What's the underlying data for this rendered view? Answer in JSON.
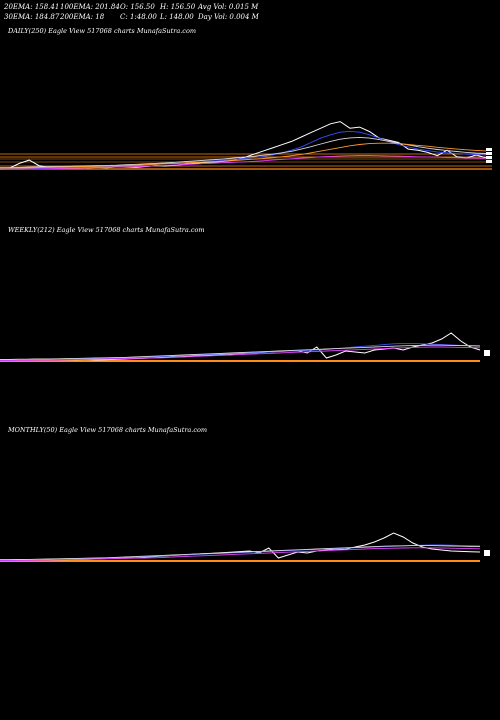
{
  "header": {
    "row1": [
      "20EMA: 158.41",
      "100EMA: 201.84",
      "O: 156.50",
      "H: 156.50",
      "Avg Vol: 0.015 M"
    ],
    "row2": [
      "30EMA: 184.87",
      "200EMA: 18",
      "C: 1:48.00",
      "L: 148.00",
      "Day Vol: 0.004  M"
    ]
  },
  "chart_data": [
    {
      "type": "line",
      "title": "DAILY(250) Eagle   View  517068 charts MunafaSutra.com",
      "series": [
        {
          "color": "#ffffff",
          "values": [
            0.1,
            0.09,
            0.3,
            0.45,
            0.2,
            0.12,
            0.1,
            0.14,
            0.18,
            0.1,
            0.12,
            0.1,
            0.15,
            0.13,
            0.12,
            0.16,
            0.2,
            0.18,
            0.22,
            0.26,
            0.3,
            0.34,
            0.36,
            0.4,
            0.45,
            0.55,
            0.7,
            0.85,
            1.0,
            1.15,
            1.3,
            1.5,
            1.7,
            1.9,
            2.1,
            2.2,
            1.9,
            1.95,
            1.75,
            1.45,
            1.35,
            1.25,
            0.95,
            0.9,
            0.8,
            0.65,
            0.9,
            0.6,
            0.55,
            0.68,
            0.55
          ]
        },
        {
          "color": "#3b4dff",
          "values": [
            0.05,
            0.06,
            0.07,
            0.08,
            0.09,
            0.1,
            0.11,
            0.12,
            0.13,
            0.14,
            0.15,
            0.16,
            0.18,
            0.2,
            0.22,
            0.24,
            0.26,
            0.28,
            0.3,
            0.32,
            0.35,
            0.38,
            0.41,
            0.44,
            0.48,
            0.52,
            0.56,
            0.61,
            0.68,
            0.78,
            0.9,
            1.05,
            1.25,
            1.45,
            1.6,
            1.72,
            1.76,
            1.72,
            1.6,
            1.45,
            1.3,
            1.15,
            1.05,
            0.95,
            0.88,
            0.82,
            0.78,
            0.75,
            0.72,
            0.7,
            0.68
          ]
        },
        {
          "color": "#d8d8d8",
          "values": [
            0.1,
            0.11,
            0.12,
            0.13,
            0.14,
            0.15,
            0.16,
            0.17,
            0.18,
            0.19,
            0.2,
            0.21,
            0.22,
            0.24,
            0.26,
            0.28,
            0.3,
            0.32,
            0.35,
            0.38,
            0.41,
            0.44,
            0.47,
            0.5,
            0.54,
            0.58,
            0.62,
            0.67,
            0.72,
            0.78,
            0.85,
            0.95,
            1.06,
            1.18,
            1.3,
            1.4,
            1.46,
            1.48,
            1.45,
            1.38,
            1.3,
            1.22,
            1.14,
            1.06,
            0.99,
            0.93,
            0.88,
            0.84,
            0.8,
            0.77,
            0.75
          ]
        },
        {
          "color": "#ff9a2e",
          "values": [
            0.08,
            0.08,
            0.09,
            0.1,
            0.11,
            0.12,
            0.13,
            0.14,
            0.15,
            0.16,
            0.17,
            0.18,
            0.19,
            0.2,
            0.22,
            0.24,
            0.26,
            0.28,
            0.3,
            0.32,
            0.34,
            0.36,
            0.38,
            0.4,
            0.43,
            0.46,
            0.49,
            0.52,
            0.56,
            0.6,
            0.65,
            0.71,
            0.78,
            0.86,
            0.94,
            1.02,
            1.1,
            1.16,
            1.2,
            1.22,
            1.22,
            1.2,
            1.16,
            1.12,
            1.08,
            1.03,
            0.99,
            0.95,
            0.92,
            0.89,
            0.87
          ]
        },
        {
          "color": "#e040fb",
          "values": [
            0.02,
            0.03,
            0.03,
            0.04,
            0.05,
            0.06,
            0.07,
            0.08,
            0.09,
            0.1,
            0.11,
            0.12,
            0.13,
            0.14,
            0.15,
            0.17,
            0.19,
            0.21,
            0.23,
            0.25,
            0.27,
            0.29,
            0.31,
            0.33,
            0.35,
            0.37,
            0.39,
            0.42,
            0.45,
            0.48,
            0.51,
            0.54,
            0.57,
            0.6,
            0.62,
            0.64,
            0.65,
            0.66,
            0.66,
            0.65,
            0.64,
            0.63,
            0.62,
            0.6,
            0.59,
            0.58,
            0.57,
            0.56,
            0.55,
            0.54,
            0.53
          ]
        }
      ]
    },
    {
      "type": "line",
      "title": "WEEKLY(212) Eagle   View  517068 charts MunafaSutra.com",
      "series": [
        {
          "color": "#ffffff",
          "values": [
            0.05,
            0.06,
            0.05,
            0.08,
            0.1,
            0.06,
            0.05,
            0.07,
            0.06,
            0.08,
            0.05,
            0.06,
            0.08,
            0.1,
            0.12,
            0.14,
            0.16,
            0.18,
            0.2,
            0.22,
            0.25,
            0.28,
            0.3,
            0.32,
            0.35,
            0.37,
            0.4,
            0.42,
            0.45,
            0.48,
            0.5,
            0.52,
            0.4,
            0.7,
            0.15,
            0.3,
            0.5,
            0.45,
            0.4,
            0.55,
            0.6,
            0.65,
            0.55,
            0.7,
            0.8,
            0.9,
            1.1,
            1.4,
            1.0,
            0.7,
            0.55
          ]
        },
        {
          "color": "#3b4dff",
          "values": [
            0.04,
            0.04,
            0.05,
            0.05,
            0.06,
            0.06,
            0.07,
            0.08,
            0.09,
            0.1,
            0.11,
            0.12,
            0.13,
            0.15,
            0.17,
            0.19,
            0.21,
            0.23,
            0.25,
            0.27,
            0.29,
            0.31,
            0.33,
            0.35,
            0.37,
            0.39,
            0.41,
            0.43,
            0.45,
            0.47,
            0.49,
            0.51,
            0.53,
            0.55,
            0.58,
            0.62,
            0.66,
            0.7,
            0.74,
            0.78,
            0.82,
            0.86,
            0.88,
            0.88,
            0.86,
            0.84,
            0.82,
            0.8,
            0.78,
            0.77,
            0.76
          ]
        },
        {
          "color": "#d8d8d8",
          "values": [
            0.08,
            0.08,
            0.09,
            0.09,
            0.1,
            0.1,
            0.11,
            0.12,
            0.13,
            0.14,
            0.15,
            0.16,
            0.17,
            0.18,
            0.2,
            0.22,
            0.24,
            0.26,
            0.28,
            0.3,
            0.32,
            0.34,
            0.36,
            0.38,
            0.4,
            0.42,
            0.44,
            0.46,
            0.48,
            0.5,
            0.52,
            0.54,
            0.56,
            0.58,
            0.6,
            0.62,
            0.64,
            0.66,
            0.68,
            0.7,
            0.72,
            0.74,
            0.76,
            0.77,
            0.78,
            0.79,
            0.79,
            0.78,
            0.77,
            0.76,
            0.75
          ]
        },
        {
          "color": "#e040fb",
          "values": [
            0.02,
            0.02,
            0.03,
            0.03,
            0.04,
            0.04,
            0.05,
            0.06,
            0.07,
            0.08,
            0.09,
            0.1,
            0.11,
            0.12,
            0.13,
            0.14,
            0.15,
            0.16,
            0.18,
            0.2,
            0.22,
            0.24,
            0.26,
            0.28,
            0.3,
            0.32,
            0.34,
            0.36,
            0.38,
            0.4,
            0.42,
            0.44,
            0.46,
            0.48,
            0.5,
            0.52,
            0.54,
            0.56,
            0.58,
            0.6,
            0.62,
            0.64,
            0.66,
            0.68,
            0.69,
            0.7,
            0.7,
            0.69,
            0.68,
            0.67,
            0.66
          ]
        }
      ]
    },
    {
      "type": "line",
      "title": "MONTHLY(50) Eagle   View  517068 charts MunafaSutra.com",
      "series": [
        {
          "color": "#ffffff",
          "values": [
            0.05,
            0.05,
            0.06,
            0.07,
            0.06,
            0.05,
            0.06,
            0.07,
            0.08,
            0.09,
            0.1,
            0.12,
            0.14,
            0.16,
            0.18,
            0.2,
            0.22,
            0.25,
            0.28,
            0.3,
            0.33,
            0.36,
            0.38,
            0.41,
            0.44,
            0.47,
            0.5,
            0.4,
            0.65,
            0.15,
            0.3,
            0.45,
            0.4,
            0.5,
            0.55,
            0.6,
            0.58,
            0.7,
            0.8,
            0.95,
            1.15,
            1.4,
            1.2,
            0.9,
            0.7,
            0.6,
            0.55,
            0.5,
            0.48,
            0.46,
            0.45
          ]
        },
        {
          "color": "#3b4dff",
          "values": [
            0.03,
            0.03,
            0.04,
            0.05,
            0.06,
            0.07,
            0.08,
            0.09,
            0.1,
            0.11,
            0.12,
            0.14,
            0.16,
            0.18,
            0.2,
            0.22,
            0.24,
            0.26,
            0.28,
            0.3,
            0.32,
            0.34,
            0.36,
            0.38,
            0.4,
            0.42,
            0.44,
            0.46,
            0.48,
            0.5,
            0.52,
            0.54,
            0.56,
            0.58,
            0.6,
            0.62,
            0.64,
            0.66,
            0.68,
            0.7,
            0.72,
            0.74,
            0.76,
            0.78,
            0.79,
            0.8,
            0.8,
            0.79,
            0.78,
            0.77,
            0.76
          ]
        },
        {
          "color": "#d8d8d8",
          "values": [
            0.07,
            0.07,
            0.08,
            0.08,
            0.09,
            0.1,
            0.11,
            0.12,
            0.13,
            0.14,
            0.15,
            0.16,
            0.18,
            0.2,
            0.22,
            0.24,
            0.26,
            0.28,
            0.3,
            0.32,
            0.34,
            0.36,
            0.38,
            0.4,
            0.42,
            0.44,
            0.46,
            0.48,
            0.5,
            0.52,
            0.54,
            0.56,
            0.58,
            0.6,
            0.62,
            0.64,
            0.66,
            0.68,
            0.7,
            0.72,
            0.74,
            0.75,
            0.76,
            0.77,
            0.77,
            0.77,
            0.76,
            0.75,
            0.74,
            0.73,
            0.72
          ]
        },
        {
          "color": "#e040fb",
          "values": [
            0.02,
            0.02,
            0.03,
            0.03,
            0.04,
            0.05,
            0.06,
            0.07,
            0.08,
            0.09,
            0.1,
            0.11,
            0.12,
            0.13,
            0.14,
            0.15,
            0.16,
            0.18,
            0.2,
            0.22,
            0.24,
            0.26,
            0.28,
            0.3,
            0.32,
            0.34,
            0.36,
            0.38,
            0.4,
            0.42,
            0.44,
            0.46,
            0.48,
            0.5,
            0.52,
            0.54,
            0.56,
            0.58,
            0.6,
            0.62,
            0.63,
            0.64,
            0.65,
            0.66,
            0.66,
            0.66,
            0.65,
            0.64,
            0.63,
            0.62,
            0.61
          ]
        }
      ]
    }
  ]
}
